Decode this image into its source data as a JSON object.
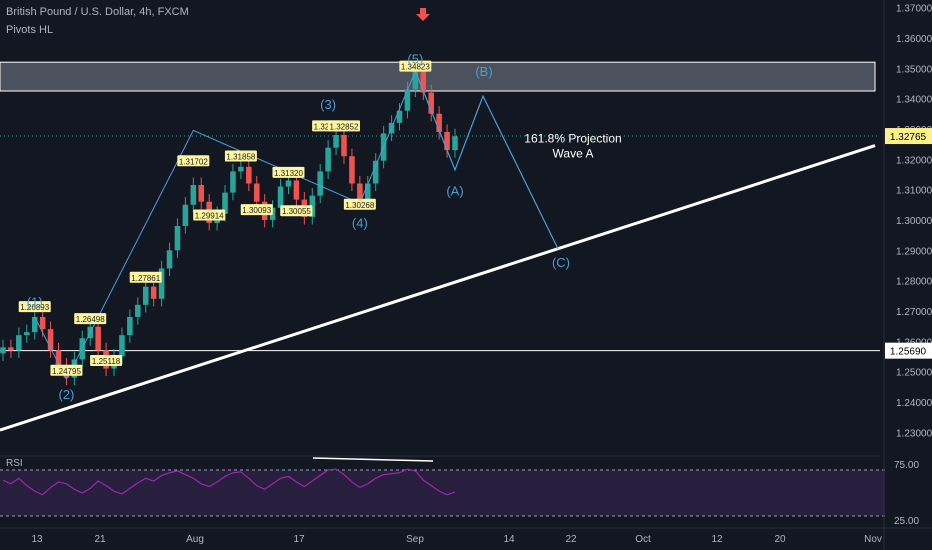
{
  "header": {
    "symbol": "British Pound / U.S. Dollar, 4h, FXCM",
    "indicator": "Pivots HL"
  },
  "colors": {
    "background": "#131722",
    "up": "#26a69a",
    "down": "#ef5350",
    "wave": "#4a9fd6",
    "trend": "#ffffff",
    "rsi": "#9c27b0",
    "pivot": "#fff59d",
    "price_tag": "#fef08a"
  },
  "chart_data": {
    "type": "line",
    "title": "British Pound / U.S. Dollar, 4h, FXCM",
    "xlabel": "",
    "ylabel": "",
    "ylim": [
      1.2225,
      1.3725
    ],
    "x_ticks": [
      "13",
      "21",
      "Aug",
      "17",
      "Sep",
      "14",
      "22",
      "Oct",
      "12",
      "20",
      "Nov"
    ],
    "y_ticks": [
      "1.37000",
      "1.36000",
      "1.35000",
      "1.34000",
      "1.33000",
      "1.32000",
      "1.31000",
      "1.30000",
      "1.29000",
      "1.28000",
      "1.27000",
      "1.26000",
      "1.25000",
      "1.24000",
      "1.23000"
    ],
    "series": [
      {
        "values": [
          1.258,
          1.257,
          1.262,
          1.263,
          1.268,
          1.264,
          1.257,
          1.252,
          1.248,
          1.254,
          1.261,
          1.2648,
          1.257,
          1.251,
          1.255,
          1.262,
          1.268,
          1.272,
          1.278,
          1.274,
          1.284,
          1.29,
          1.298,
          1.305,
          1.3115,
          1.306,
          1.299,
          1.302,
          1.309,
          1.316,
          1.3175,
          1.312,
          1.306,
          1.3,
          1.304,
          1.311,
          1.313,
          1.3067,
          1.301,
          1.308,
          1.316,
          1.3238,
          1.328,
          1.321,
          1.312,
          1.306,
          1.312,
          1.3195,
          1.3285,
          1.332,
          1.336,
          1.343,
          1.349,
          1.342,
          1.335,
          1.329,
          1.323,
          1.3276
        ]
      }
    ],
    "pivots": [
      {
        "i": 4,
        "label": "1.26893"
      },
      {
        "i": 11,
        "label": "1.26498"
      },
      {
        "i": 8,
        "label": "1.24795"
      },
      {
        "i": 13,
        "label": "1.25118"
      },
      {
        "i": 18,
        "label": "1.27861"
      },
      {
        "i": 24,
        "label": "1.31702"
      },
      {
        "i": 26,
        "label": "1.29914"
      },
      {
        "i": 30,
        "label": "1.31858"
      },
      {
        "i": 32,
        "label": "1.30093"
      },
      {
        "i": 36,
        "label": "1.31320"
      },
      {
        "i": 37,
        "label": "1.30055"
      },
      {
        "i": 41,
        "label": "1.32852"
      },
      {
        "i": 43,
        "label": "1.32852"
      },
      {
        "i": 45,
        "label": "1.30268"
      },
      {
        "i": 52,
        "label": "1.34823"
      }
    ],
    "wave_labels": [
      "(1)",
      "(2)",
      "(3)",
      "(4)",
      "(5)",
      "(A)",
      "(B)",
      "(C)"
    ],
    "projection_text": [
      "161.8% Projection",
      "Wave A"
    ],
    "resistance_zone": [
      1.3425,
      1.352
    ],
    "support_level": 1.2569,
    "support_label": "1.25690",
    "last_price": 1.32765,
    "last_price_label": "1.32765",
    "trendline": [
      1.2307,
      1.3245
    ],
    "projected_path": [
      1.3165,
      1.3408,
      1.2905
    ],
    "rsi": {
      "label": "RSI",
      "levels": [
        "75.00",
        "25.00"
      ],
      "values": [
        64,
        60,
        66,
        58,
        52,
        48,
        56,
        62,
        60,
        54,
        50,
        55,
        63,
        58,
        52,
        49,
        55,
        61,
        66,
        63,
        69,
        72,
        74,
        70,
        66,
        60,
        57,
        62,
        68,
        72,
        73,
        66,
        58,
        54,
        60,
        66,
        68,
        62,
        57,
        63,
        69,
        75,
        76,
        70,
        62,
        56,
        60,
        66,
        70,
        71,
        72,
        76,
        74,
        64,
        58,
        52,
        48,
        51
      ]
    }
  }
}
